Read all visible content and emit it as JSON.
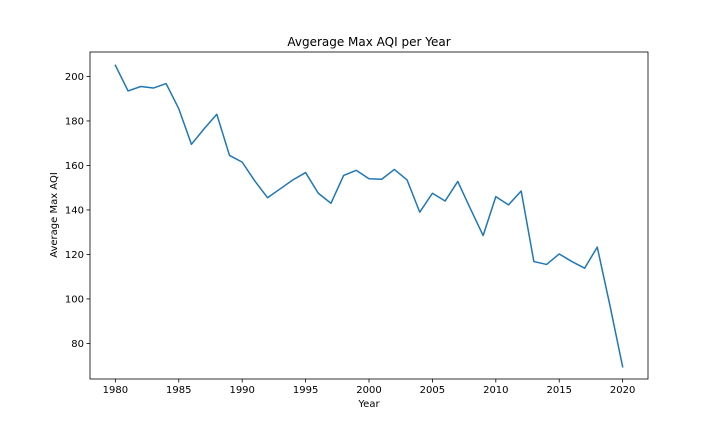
{
  "chart_data": {
    "type": "line",
    "title": "Avgerage Max AQI per Year",
    "xlabel": "Year",
    "ylabel": "Average Max AQI",
    "xlim": [
      1978,
      2022
    ],
    "ylim": [
      64,
      211
    ],
    "xticks": [
      1980,
      1985,
      1990,
      1995,
      2000,
      2005,
      2010,
      2015,
      2020
    ],
    "yticks": [
      80,
      100,
      120,
      140,
      160,
      180,
      200
    ],
    "grid": false,
    "legend": "none",
    "colors": {
      "line": "#1f77b4"
    },
    "series": [
      {
        "x": [
          1980,
          1981,
          1982,
          1983,
          1984,
          1985,
          1986,
          1987,
          1988,
          1989,
          1990,
          1991,
          1992,
          1993,
          1994,
          1995,
          1996,
          1997,
          1998,
          1999,
          2000,
          2001,
          2002,
          2003,
          2004,
          2005,
          2006,
          2007,
          2008,
          2009,
          2010,
          2011,
          2012,
          2013,
          2014,
          2015,
          2016,
          2017,
          2018,
          2019,
          2020
        ],
        "values": [
          205,
          193.5,
          195.5,
          194.8,
          196.8,
          185.5,
          169.5,
          176.5,
          183,
          164.5,
          161.5,
          153,
          145.5,
          149.5,
          153.5,
          156.8,
          147.5,
          143,
          155.5,
          157.8,
          154,
          153.8,
          158.2,
          153.5,
          139,
          147.5,
          144,
          152.8,
          140.5,
          128.5,
          146,
          142.3,
          148.5,
          116.8,
          115.5,
          120.2,
          116.8,
          113.8,
          123.3,
          97,
          69.5
        ]
      }
    ]
  }
}
